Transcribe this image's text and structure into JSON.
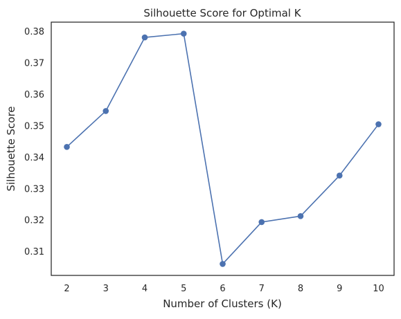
{
  "chart_data": {
    "type": "line",
    "title": "Silhouette Score for Optimal K",
    "xlabel": "Number of Clusters (K)",
    "ylabel": "Silhouette Score",
    "x": [
      2,
      3,
      4,
      5,
      6,
      7,
      8,
      9,
      10
    ],
    "series": [
      {
        "values": [
          0.3433,
          0.3547,
          0.3781,
          0.3793,
          0.3061,
          0.3194,
          0.3213,
          0.3342,
          0.3505
        ],
        "color": "#4c72b0",
        "marker": "circle"
      }
    ],
    "xticks": [
      "2",
      "3",
      "4",
      "5",
      "6",
      "7",
      "8",
      "9",
      "10"
    ],
    "yticks": [
      "0.31",
      "0.32",
      "0.33",
      "0.34",
      "0.35",
      "0.36",
      "0.37",
      "0.38"
    ],
    "xlim": [
      1.6,
      10.4
    ],
    "ylim": [
      0.30245,
      0.38296
    ],
    "grid": false,
    "legend": "none"
  }
}
